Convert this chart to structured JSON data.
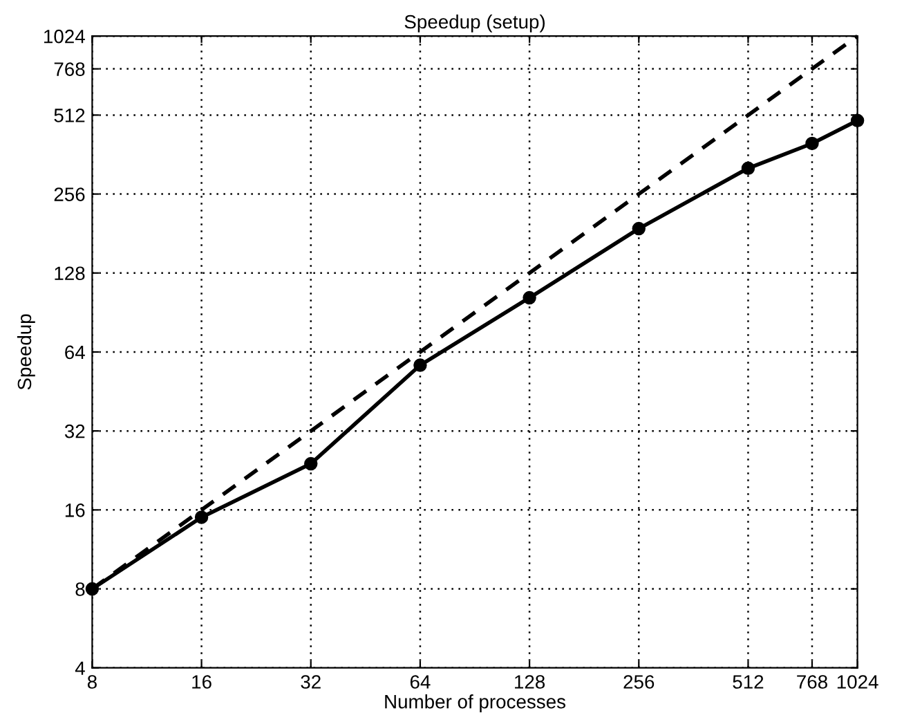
{
  "chart_data": {
    "type": "line",
    "title": "Speedup (setup)",
    "xlabel": "Number of processes",
    "ylabel": "Speedup",
    "x": [
      8,
      16,
      32,
      64,
      128,
      256,
      512,
      768,
      1024
    ],
    "series": [
      {
        "color": "#000000",
        "values": [
          8,
          15,
          24,
          57,
          103,
          189,
          321,
          399,
          488
        ],
        "marker": "circle",
        "line_style": "solid"
      },
      {
        "color": "#000000",
        "values": [
          8,
          16,
          32,
          64,
          128,
          256,
          512,
          768,
          1024
        ],
        "marker": "none",
        "line_style": "dashed"
      }
    ],
    "log": "xy",
    "xlim": [
      8,
      1024
    ],
    "ylim": [
      4,
      1024
    ],
    "xticks": [
      8,
      16,
      32,
      64,
      128,
      256,
      512,
      768,
      1024
    ],
    "yticks": [
      4,
      8,
      16,
      32,
      64,
      128,
      256,
      512,
      768,
      1024
    ],
    "grid": true
  }
}
